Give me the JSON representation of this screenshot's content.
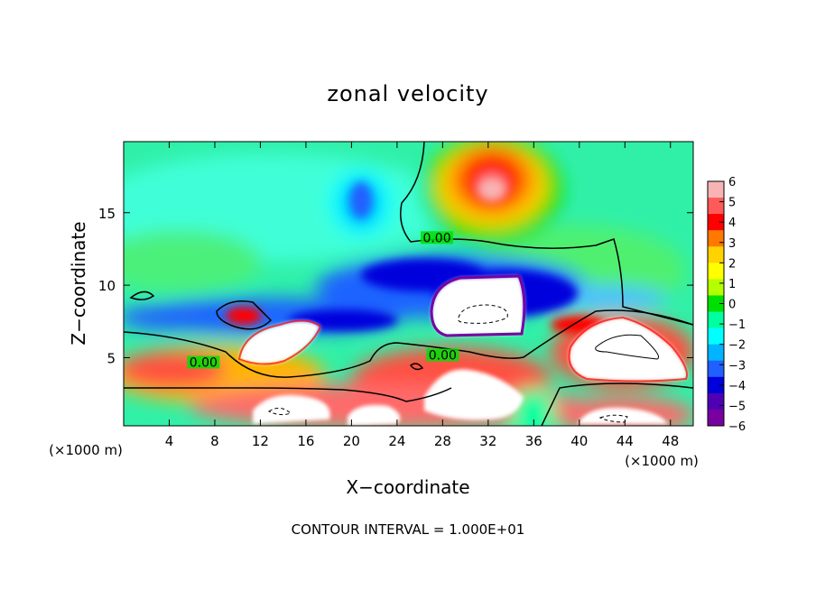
{
  "chart_data": {
    "type": "heatmap",
    "title": "zonal velocity",
    "xlabel": "X−coordinate",
    "ylabel": "Z−coordinate",
    "x_unit_left": "(×1000 m)",
    "x_unit_right": "(×1000 m)",
    "footer": "CONTOUR INTERVAL = 1.000E+01",
    "xlim": [
      0,
      50
    ],
    "ylim": [
      0.3,
      19.9
    ],
    "x_ticks": [
      {
        "value": 4,
        "label": "4"
      },
      {
        "value": 8,
        "label": "8"
      },
      {
        "value": 12,
        "label": "12"
      },
      {
        "value": 16,
        "label": "16"
      },
      {
        "value": 20,
        "label": "20"
      },
      {
        "value": 24,
        "label": "24"
      },
      {
        "value": 28,
        "label": "28"
      },
      {
        "value": 32,
        "label": "32"
      },
      {
        "value": 36,
        "label": "36"
      },
      {
        "value": 40,
        "label": "40"
      },
      {
        "value": 44,
        "label": "44"
      },
      {
        "value": 48,
        "label": "48"
      }
    ],
    "y_ticks": [
      {
        "value": 5,
        "label": "5"
      },
      {
        "value": 10,
        "label": "10"
      },
      {
        "value": 15,
        "label": "15"
      }
    ],
    "colorbar": {
      "min": -6,
      "max": 6,
      "ticks": [
        "6",
        "5",
        "4",
        "3",
        "2",
        "1",
        "0",
        "−1",
        "−2",
        "−3",
        "−4",
        "−5",
        "−6"
      ],
      "colors": [
        "#f8b4b4",
        "#ff5a5a",
        "#ff0000",
        "#ff7800",
        "#ffd200",
        "#ffff00",
        "#b4ff00",
        "#00e000",
        "#00ffa0",
        "#00ffff",
        "#00b4ff",
        "#2060ff",
        "#0000dc",
        "#5000b4",
        "#7800a0"
      ]
    },
    "contour_labels": [
      {
        "x": 27.5,
        "y": 13.1,
        "text": "0.00"
      },
      {
        "x": 7.0,
        "y": 4.5,
        "text": "0.00"
      },
      {
        "x": 28.0,
        "y": 5.0,
        "text": "0.00"
      }
    ],
    "features": [
      {
        "name": "positive core",
        "x": 32,
        "z": 16.3,
        "value": 6
      },
      {
        "name": "negative core",
        "x": 21,
        "z": 15.4,
        "value": -3.5
      },
      {
        "name": "negative band",
        "x": 28,
        "z": 10.3,
        "value": -5
      },
      {
        "name": "white region (> 6)",
        "x": 32.5,
        "z": 8.3
      },
      {
        "name": "white region (> 6)",
        "x": 14.5,
        "z": 6.2
      },
      {
        "name": "white region (> 6)",
        "x": 44,
        "z": 5.4
      },
      {
        "name": "white region (> 6)",
        "x": 20,
        "z": 1.4
      },
      {
        "name": "white region (> 6)",
        "x": 31,
        "z": 2.2
      },
      {
        "name": "white region (> 6)",
        "x": 44,
        "z": 0.8
      }
    ]
  }
}
